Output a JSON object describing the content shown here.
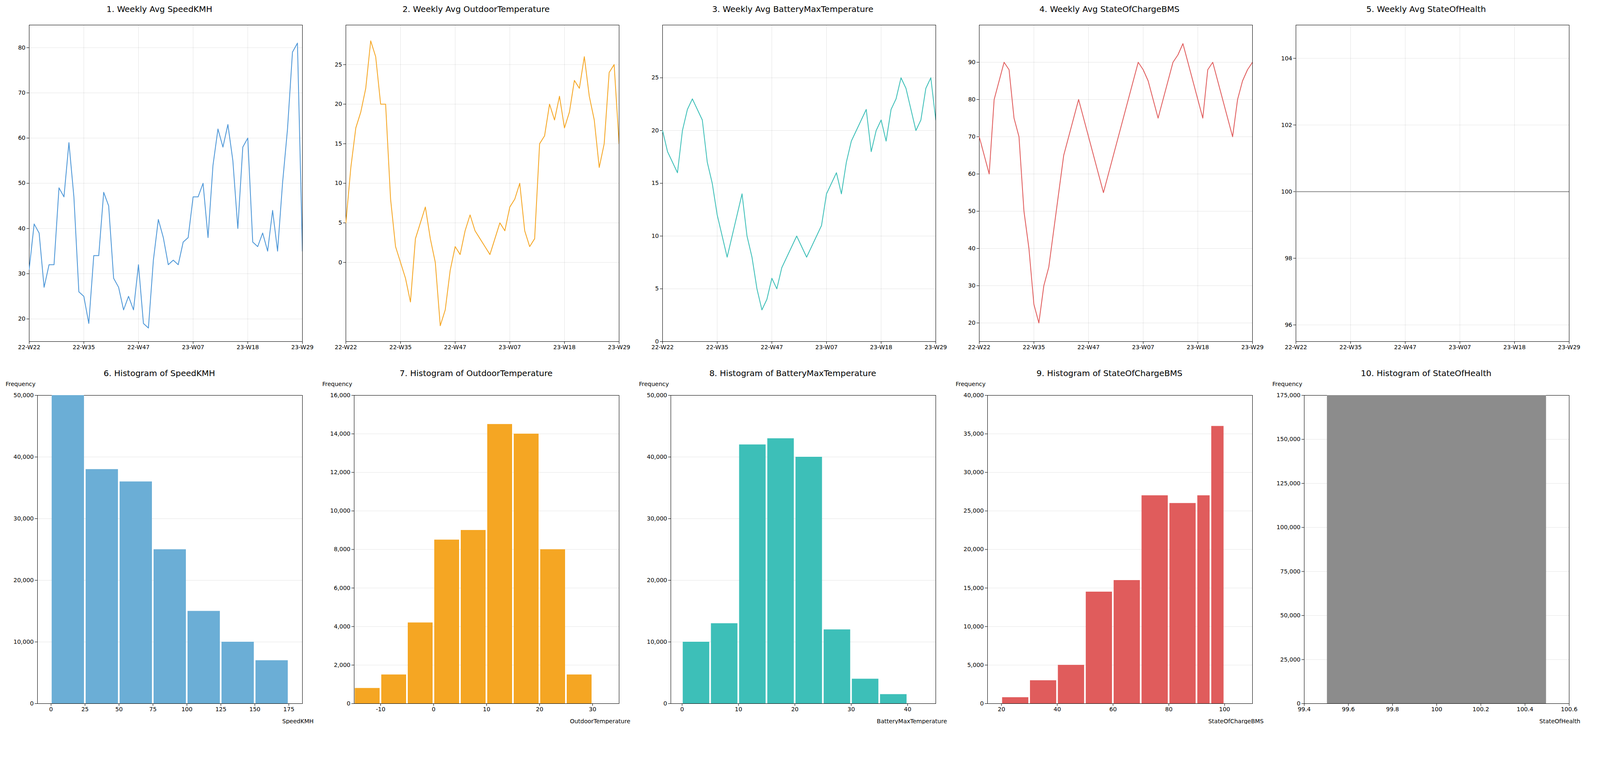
{
  "chart_data": [
    {
      "type": "line",
      "title": "1. Weekly Avg SpeedKMH",
      "categories": [
        "22-W22",
        null,
        null,
        null,
        null,
        null,
        null,
        null,
        null,
        null,
        null,
        "22-W35",
        null,
        null,
        null,
        null,
        null,
        null,
        null,
        null,
        null,
        null,
        "22-W47",
        null,
        null,
        null,
        null,
        null,
        null,
        null,
        null,
        null,
        null,
        "23-W07",
        null,
        null,
        null,
        null,
        null,
        null,
        null,
        null,
        null,
        null,
        "23-W18",
        null,
        null,
        null,
        null,
        null,
        null,
        null,
        null,
        null,
        null,
        "23-W29"
      ],
      "values": [
        31,
        41,
        39,
        27,
        32,
        32,
        49,
        47,
        59,
        47,
        26,
        25,
        19,
        34,
        34,
        48,
        45,
        29,
        27,
        22,
        25,
        22,
        32,
        19,
        18,
        33,
        42,
        38,
        32,
        33,
        32,
        37,
        38,
        47,
        47,
        50,
        38,
        54,
        62,
        58,
        63,
        55,
        40,
        58,
        60,
        37,
        36,
        39,
        35,
        44,
        35,
        50,
        62,
        79,
        81,
        35
      ],
      "color": "#4C96D7",
      "ylim": [
        15,
        85
      ],
      "yticks": [
        20,
        30,
        40,
        50,
        60,
        70,
        80
      ],
      "grid": true
    },
    {
      "type": "line",
      "title": "2. Weekly Avg OutdoorTemperature",
      "categories": [
        "22-W22",
        null,
        null,
        null,
        null,
        null,
        null,
        null,
        null,
        null,
        null,
        "22-W35",
        null,
        null,
        null,
        null,
        null,
        null,
        null,
        null,
        null,
        null,
        "22-W47",
        null,
        null,
        null,
        null,
        null,
        null,
        null,
        null,
        null,
        null,
        "23-W07",
        null,
        null,
        null,
        null,
        null,
        null,
        null,
        null,
        null,
        null,
        "23-W18",
        null,
        null,
        null,
        null,
        null,
        null,
        null,
        null,
        null,
        null,
        "23-W29"
      ],
      "values": [
        5,
        12,
        17,
        19,
        22,
        28,
        26,
        20,
        20,
        8,
        2,
        0,
        -2,
        -5,
        3,
        5,
        7,
        3,
        0,
        -8,
        -6,
        -1,
        2,
        1,
        4,
        6,
        4,
        3,
        2,
        1,
        3,
        5,
        4,
        7,
        8,
        10,
        4,
        2,
        3,
        15,
        16,
        20,
        18,
        21,
        17,
        19,
        23,
        22,
        26,
        21,
        18,
        12,
        15,
        24,
        25,
        15
      ],
      "color": "#F5A623",
      "ylim": [
        -10,
        30
      ],
      "yticks": [
        0,
        5,
        10,
        15,
        20,
        25
      ],
      "grid": true
    },
    {
      "type": "line",
      "title": "3. Weekly Avg BatteryMaxTemperature",
      "categories": [
        "22-W22",
        null,
        null,
        null,
        null,
        null,
        null,
        null,
        null,
        null,
        null,
        "22-W35",
        null,
        null,
        null,
        null,
        null,
        null,
        null,
        null,
        null,
        null,
        "22-W47",
        null,
        null,
        null,
        null,
        null,
        null,
        null,
        null,
        null,
        null,
        "23-W07",
        null,
        null,
        null,
        null,
        null,
        null,
        null,
        null,
        null,
        null,
        "23-W18",
        null,
        null,
        null,
        null,
        null,
        null,
        null,
        null,
        null,
        null,
        "23-W29"
      ],
      "values": [
        20,
        18,
        17,
        16,
        20,
        22,
        23,
        22,
        21,
        17,
        15,
        12,
        10,
        8,
        10,
        12,
        14,
        10,
        8,
        5,
        3,
        4,
        6,
        5,
        7,
        8,
        9,
        10,
        9,
        8,
        9,
        10,
        11,
        14,
        15,
        16,
        14,
        17,
        19,
        20,
        21,
        22,
        18,
        20,
        21,
        19,
        22,
        23,
        25,
        24,
        22,
        20,
        21,
        24,
        25,
        21
      ],
      "color": "#3DBFB8",
      "ylim": [
        0,
        30
      ],
      "yticks": [
        0,
        5,
        10,
        15,
        20,
        25
      ],
      "grid": true
    },
    {
      "type": "line",
      "title": "4. Weekly Avg StateOfChargeBMS",
      "categories": [
        "22-W22",
        null,
        null,
        null,
        null,
        null,
        null,
        null,
        null,
        null,
        null,
        "22-W35",
        null,
        null,
        null,
        null,
        null,
        null,
        null,
        null,
        null,
        null,
        "22-W47",
        null,
        null,
        null,
        null,
        null,
        null,
        null,
        null,
        null,
        null,
        "23-W07",
        null,
        null,
        null,
        null,
        null,
        null,
        null,
        null,
        null,
        null,
        "23-W18",
        null,
        null,
        null,
        null,
        null,
        null,
        null,
        null,
        null,
        null,
        "23-W29"
      ],
      "values": [
        70,
        65,
        60,
        80,
        85,
        90,
        88,
        75,
        70,
        50,
        40,
        25,
        20,
        30,
        35,
        45,
        55,
        65,
        70,
        75,
        80,
        75,
        70,
        65,
        60,
        55,
        60,
        65,
        70,
        75,
        80,
        85,
        90,
        88,
        85,
        80,
        75,
        80,
        85,
        90,
        92,
        95,
        90,
        85,
        80,
        75,
        88,
        90,
        85,
        80,
        75,
        70,
        80,
        85,
        88,
        90
      ],
      "color": "#E05C5C",
      "ylim": [
        15,
        100
      ],
      "yticks": [
        20,
        30,
        40,
        50,
        60,
        70,
        80,
        90
      ],
      "grid": true
    },
    {
      "type": "line",
      "title": "5. Weekly Avg StateOfHealth",
      "categories": [
        "22-W22",
        null,
        null,
        null,
        null,
        null,
        null,
        null,
        null,
        null,
        null,
        "22-W35",
        null,
        null,
        null,
        null,
        null,
        null,
        null,
        null,
        null,
        null,
        "22-W47",
        null,
        null,
        null,
        null,
        null,
        null,
        null,
        null,
        null,
        null,
        "23-W07",
        null,
        null,
        null,
        null,
        null,
        null,
        null,
        null,
        null,
        null,
        "23-W18",
        null,
        null,
        null,
        null,
        null,
        null,
        null,
        null,
        null,
        null,
        "23-W29"
      ],
      "values": [
        100,
        100,
        100,
        100,
        100,
        100,
        100,
        100,
        100,
        100,
        100,
        100,
        100,
        100,
        100,
        100,
        100,
        100,
        100,
        100,
        100,
        100,
        100,
        100,
        100,
        100,
        100,
        100,
        100,
        100,
        100,
        100,
        100,
        100,
        100,
        100,
        100,
        100,
        100,
        100,
        100,
        100,
        100,
        100,
        100,
        100,
        100,
        100,
        100,
        100,
        100,
        100,
        100,
        100,
        100,
        100
      ],
      "color": "#8C8C8C",
      "ylim": [
        95.5,
        105
      ],
      "yticks": [
        96,
        98,
        100,
        102,
        104
      ],
      "grid": true
    },
    {
      "type": "histogram",
      "title": "6. Histogram of SpeedKMH",
      "xlabel": "SpeedKMH",
      "ylabel": "Frequency",
      "bins": [
        0,
        25,
        50,
        75,
        100,
        125,
        150,
        175
      ],
      "values": [
        50000,
        38000,
        36000,
        25000,
        15000,
        10000,
        7000
      ],
      "color": "#6BAED6",
      "xlim": [
        -10,
        185
      ],
      "xticks": [
        0,
        25,
        50,
        75,
        100,
        125,
        150,
        175
      ],
      "ylim": [
        0,
        50000
      ],
      "yticks": [
        0,
        {
          "value": 10000,
          "label": "10,000"
        },
        {
          "value": 20000,
          "label": "20,000"
        },
        {
          "value": 30000,
          "label": "30,000"
        },
        {
          "value": 40000,
          "label": "40,000"
        },
        {
          "value": 50000,
          "label": "50,000"
        }
      ],
      "grid": "y"
    },
    {
      "type": "histogram",
      "title": "7. Histogram of OutdoorTemperature",
      "xlabel": "OutdoorTemperature",
      "ylabel": "Frequency",
      "bins": [
        -15,
        -10,
        -5,
        0,
        5,
        10,
        15,
        20,
        25,
        30
      ],
      "values": [
        800,
        1500,
        4200,
        8500,
        9000,
        14500,
        14000,
        8000,
        1500
      ],
      "color": "#F5A623",
      "xlim": [
        -15,
        35
      ],
      "xticks": [
        -10,
        0,
        10,
        20,
        30
      ],
      "ylim": [
        0,
        16000
      ],
      "yticks": [
        0,
        {
          "value": 2000,
          "label": "2,000"
        },
        {
          "value": 4000,
          "label": "4,000"
        },
        {
          "value": 6000,
          "label": "6,000"
        },
        {
          "value": 8000,
          "label": "8,000"
        },
        {
          "value": 10000,
          "label": "10,000"
        },
        {
          "value": 12000,
          "label": "12,000"
        },
        {
          "value": 14000,
          "label": "14,000"
        },
        {
          "value": 16000,
          "label": "16,000"
        }
      ],
      "grid": "y"
    },
    {
      "type": "histogram",
      "title": "8. Histogram of BatteryMaxTemperature",
      "xlabel": "BatteryMaxTemperature",
      "ylabel": "Frequency",
      "bins": [
        0,
        5,
        10,
        15,
        20,
        25,
        30,
        35,
        40
      ],
      "values": [
        10000,
        13000,
        42000,
        43000,
        40000,
        12000,
        4000,
        1500
      ],
      "color": "#3DBFB8",
      "xlim": [
        -2,
        45
      ],
      "xticks": [
        0,
        10,
        20,
        30,
        40
      ],
      "ylim": [
        0,
        50000
      ],
      "yticks": [
        0,
        {
          "value": 10000,
          "label": "10,000"
        },
        {
          "value": 20000,
          "label": "20,000"
        },
        {
          "value": 30000,
          "label": "30,000"
        },
        {
          "value": 40000,
          "label": "40,000"
        },
        {
          "value": 50000,
          "label": "50,000"
        }
      ],
      "grid": "y"
    },
    {
      "type": "histogram",
      "title": "9. Histogram of StateOfChargeBMS",
      "xlabel": "StateOfChargeBMS",
      "ylabel": "Frequency",
      "bins": [
        20,
        30,
        40,
        50,
        60,
        70,
        80,
        90,
        95,
        100
      ],
      "values": [
        800,
        3000,
        5000,
        14500,
        16000,
        27000,
        26000,
        27000,
        36000
      ],
      "color": "#E05C5C",
      "xlim": [
        15,
        110
      ],
      "xticks": [
        20,
        40,
        60,
        80,
        100
      ],
      "ylim": [
        0,
        40000
      ],
      "yticks": [
        0,
        {
          "value": 5000,
          "label": "5,000"
        },
        {
          "value": 10000,
          "label": "10,000"
        },
        {
          "value": 15000,
          "label": "15,000"
        },
        {
          "value": 20000,
          "label": "20,000"
        },
        {
          "value": 25000,
          "label": "25,000"
        },
        {
          "value": 30000,
          "label": "30,000"
        },
        {
          "value": 35000,
          "label": "35,000"
        },
        {
          "value": 40000,
          "label": "40,000"
        }
      ],
      "grid": "y"
    },
    {
      "type": "histogram",
      "title": "10. Histogram of StateOfHealth",
      "xlabel": "StateOfHealth",
      "ylabel": "Frequency",
      "bins": [
        99.5,
        100.5
      ],
      "values": [
        175000
      ],
      "color": "#8C8C8C",
      "xlim": [
        99.4,
        100.6
      ],
      "xticks": [
        99.4,
        99.6,
        99.8,
        100,
        100.2,
        100.4,
        100.6
      ],
      "ylim": [
        0,
        175000
      ],
      "yticks": [
        0,
        {
          "value": 25000,
          "label": "25,000"
        },
        {
          "value": 50000,
          "label": "50,000"
        },
        {
          "value": 75000,
          "label": "75,000"
        },
        {
          "value": 100000,
          "label": "100,000"
        },
        {
          "value": 125000,
          "label": "125,000"
        },
        {
          "value": 150000,
          "label": "150,000"
        },
        {
          "value": 175000,
          "label": "175,000"
        }
      ],
      "grid": "y"
    }
  ]
}
